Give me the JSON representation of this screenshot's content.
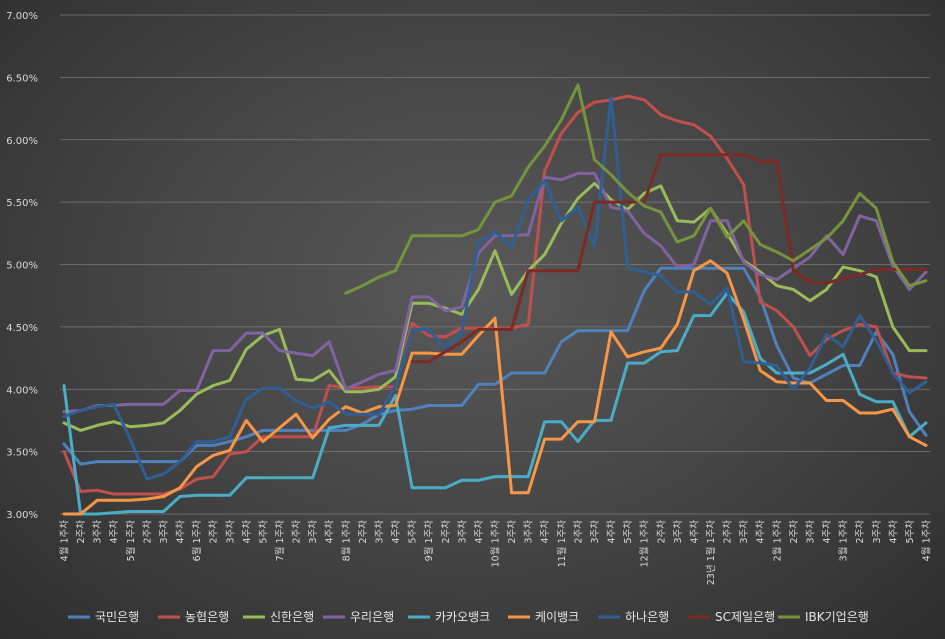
{
  "chart_data": {
    "type": "line",
    "title": "",
    "xlabel": "",
    "ylabel": "",
    "y_unit": "%",
    "ylim": [
      3.0,
      7.0
    ],
    "yticks": [
      "3.00%",
      "3.50%",
      "4.00%",
      "4.50%",
      "5.00%",
      "5.50%",
      "6.00%",
      "6.50%",
      "7.00%"
    ],
    "grid": true,
    "legend_position": "bottom",
    "x": [
      "4월 1주차",
      "2주차",
      "3주차",
      "4주차",
      "5월 1주차",
      "2주차",
      "3주차",
      "4주차",
      "6월 1주차",
      "2주차",
      "3주차",
      "4주차",
      "5주차",
      "7월 1주차",
      "2주차",
      "3주차",
      "4주차",
      "8월 1주차",
      "2주차",
      "3주차",
      "4주차",
      "5주차",
      "9월 1주차",
      "2주차",
      "3주차",
      "4주차",
      "10월 1주차",
      "2주차",
      "3주차",
      "4주차",
      "11월 1주차",
      "2주차",
      "3주차",
      "4주차",
      "5주차",
      "12월 1주차",
      "2주차",
      "3주차",
      "4주차",
      "23년 1월 1주차",
      "2주차",
      "3주차",
      "4주차",
      "2월 1주차",
      "2주차",
      "3주차",
      "4주차",
      "3월 1주차",
      "2주차",
      "3주차",
      "4주차",
      "5주차",
      "4월 1주차"
    ],
    "series": [
      {
        "name": "국민은행",
        "color": "#4f81bd",
        "values": [
          3.56,
          3.4,
          3.42,
          3.42,
          3.42,
          3.42,
          3.42,
          3.42,
          3.55,
          3.55,
          3.58,
          3.62,
          3.67,
          3.67,
          3.67,
          3.67,
          3.67,
          3.67,
          3.72,
          3.8,
          3.83,
          3.84,
          3.87,
          3.87,
          3.87,
          4.04,
          4.04,
          4.13,
          4.13,
          4.13,
          4.38,
          4.47,
          4.47,
          4.47,
          4.47,
          4.79,
          4.97,
          4.97,
          4.97,
          4.97,
          4.97,
          4.97,
          4.74,
          4.35,
          4.09,
          4.05,
          4.12,
          4.19,
          4.19,
          4.46,
          4.28,
          3.82,
          3.63
        ]
      },
      {
        "name": "농협은행",
        "color": "#c0504d",
        "values": [
          3.5,
          3.18,
          3.19,
          3.16,
          3.16,
          3.16,
          3.16,
          3.2,
          3.28,
          3.3,
          3.48,
          3.5,
          3.62,
          3.62,
          3.62,
          3.62,
          4.03,
          4.01,
          4.01,
          4.02,
          4.02,
          4.53,
          4.43,
          4.42,
          4.49,
          4.49,
          4.49,
          4.49,
          4.52,
          5.75,
          6.05,
          6.22,
          6.3,
          6.32,
          6.35,
          6.32,
          6.2,
          6.15,
          6.12,
          6.03,
          5.85,
          5.64,
          4.7,
          4.63,
          4.5,
          4.27,
          4.4,
          4.47,
          4.52,
          4.5,
          4.13,
          4.1,
          4.09
        ]
      },
      {
        "name": "신한은행",
        "color": "#9bbb59",
        "values": [
          3.73,
          3.67,
          3.71,
          3.74,
          3.7,
          3.71,
          3.73,
          3.83,
          3.96,
          4.03,
          4.07,
          4.32,
          4.43,
          4.48,
          4.08,
          4.07,
          4.15,
          3.98,
          3.98,
          4.0,
          4.1,
          4.69,
          4.69,
          4.65,
          4.6,
          4.8,
          5.11,
          4.76,
          4.95,
          5.08,
          5.33,
          5.53,
          5.65,
          5.52,
          5.44,
          5.57,
          5.63,
          5.35,
          5.34,
          5.45,
          5.25,
          5.03,
          4.94,
          4.83,
          4.8,
          4.71,
          4.8,
          4.98,
          4.95,
          4.9,
          4.5,
          4.31,
          4.31
        ]
      },
      {
        "name": "우리은행",
        "color": "#8064a2",
        "values": [
          3.82,
          3.83,
          3.87,
          3.87,
          3.88,
          3.88,
          3.88,
          3.99,
          3.99,
          4.31,
          4.31,
          4.45,
          4.45,
          4.31,
          4.29,
          4.27,
          4.38,
          4.0,
          4.06,
          4.12,
          4.15,
          4.74,
          4.74,
          4.63,
          4.66,
          5.09,
          5.23,
          5.23,
          5.24,
          5.7,
          5.68,
          5.73,
          5.73,
          5.46,
          5.43,
          5.25,
          5.15,
          4.98,
          5.0,
          5.35,
          5.35,
          5.02,
          4.92,
          4.88,
          4.97,
          5.06,
          5.23,
          5.08,
          5.39,
          5.35,
          4.99,
          4.8,
          4.94
        ]
      },
      {
        "name": "카카오뱅크",
        "color": "#4bacc6",
        "values": [
          4.03,
          3.0,
          3.0,
          3.01,
          3.02,
          3.02,
          3.02,
          3.14,
          3.15,
          3.15,
          3.15,
          3.29,
          3.29,
          3.29,
          3.29,
          3.29,
          3.69,
          3.71,
          3.71,
          3.71,
          3.95,
          3.21,
          3.21,
          3.21,
          3.27,
          3.27,
          3.3,
          3.3,
          3.3,
          3.74,
          3.74,
          3.58,
          3.75,
          3.75,
          4.21,
          4.21,
          4.3,
          4.31,
          4.59,
          4.59,
          4.77,
          4.62,
          4.25,
          4.13,
          4.13,
          4.13,
          4.2,
          4.28,
          3.96,
          3.9,
          3.9,
          3.62,
          3.73
        ]
      },
      {
        "name": "케이뱅크",
        "color": "#f79646",
        "values": [
          3.0,
          3.0,
          3.11,
          3.11,
          3.11,
          3.12,
          3.14,
          3.21,
          3.38,
          3.47,
          3.51,
          3.75,
          3.58,
          3.69,
          3.8,
          3.61,
          3.76,
          3.86,
          3.81,
          3.86,
          3.87,
          4.29,
          4.29,
          4.28,
          4.28,
          4.43,
          4.57,
          3.17,
          3.17,
          3.6,
          3.6,
          3.74,
          3.74,
          4.46,
          4.26,
          4.3,
          4.33,
          4.52,
          4.95,
          5.03,
          4.93,
          4.56,
          4.15,
          4.06,
          4.05,
          4.05,
          3.91,
          3.91,
          3.81,
          3.81,
          3.84,
          3.62,
          3.55
        ]
      },
      {
        "name": "하나은행",
        "color": "#2f5f94",
        "values": [
          3.78,
          3.83,
          3.86,
          3.88,
          3.6,
          3.28,
          3.32,
          3.42,
          3.58,
          3.58,
          3.62,
          3.92,
          4.01,
          4.01,
          3.91,
          3.85,
          3.9,
          3.8,
          3.8,
          3.8,
          4.03,
          4.48,
          4.48,
          4.33,
          4.45,
          5.18,
          5.26,
          5.14,
          5.52,
          5.67,
          5.35,
          5.46,
          5.15,
          6.34,
          4.98,
          4.94,
          4.91,
          4.78,
          4.78,
          4.68,
          4.81,
          4.22,
          4.21,
          4.19,
          4.0,
          4.17,
          4.44,
          4.34,
          4.59,
          4.39,
          4.13,
          3.97,
          4.06
        ]
      },
      {
        "name": "SC제일은행",
        "color": "#7b2a25",
        "values": [
          null,
          null,
          null,
          null,
          null,
          null,
          null,
          null,
          null,
          null,
          null,
          null,
          null,
          null,
          null,
          null,
          null,
          null,
          null,
          null,
          null,
          4.22,
          4.22,
          4.3,
          4.38,
          4.48,
          4.48,
          4.48,
          4.95,
          4.95,
          4.95,
          4.95,
          5.5,
          5.5,
          5.5,
          5.5,
          5.88,
          5.88,
          5.88,
          5.88,
          5.88,
          5.88,
          5.83,
          5.83,
          4.95,
          4.86,
          4.85,
          4.89,
          4.92,
          4.96,
          4.96,
          4.96,
          4.96
        ]
      },
      {
        "name": "IBK기업은행",
        "color": "#77933c",
        "values": [
          null,
          null,
          null,
          null,
          null,
          null,
          null,
          null,
          null,
          null,
          null,
          null,
          null,
          null,
          null,
          null,
          null,
          4.77,
          4.83,
          4.9,
          4.95,
          5.23,
          5.23,
          5.23,
          5.23,
          5.28,
          5.5,
          5.55,
          5.78,
          5.95,
          6.16,
          6.44,
          5.84,
          5.72,
          5.58,
          5.47,
          5.42,
          5.18,
          5.23,
          5.45,
          5.22,
          5.35,
          5.16,
          5.1,
          5.03,
          5.12,
          5.21,
          5.35,
          5.57,
          5.45,
          5.02,
          4.83,
          4.87
        ]
      }
    ]
  }
}
